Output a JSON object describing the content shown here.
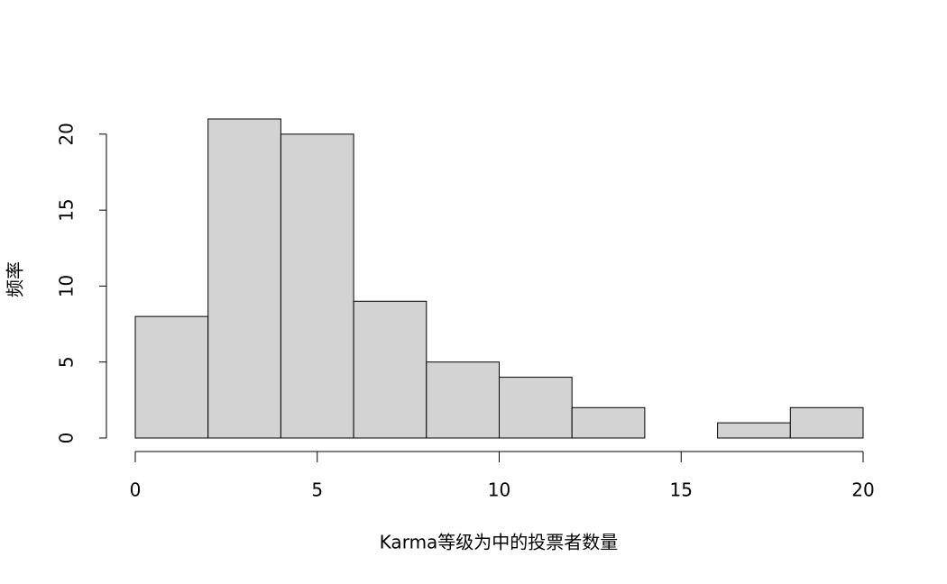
{
  "chart_data": {
    "type": "histogram",
    "xlabel": "Karma等级为中的投票者数量",
    "ylabel": "频率",
    "bins": [
      0,
      2,
      4,
      6,
      8,
      10,
      12,
      14,
      16,
      18,
      20
    ],
    "values": [
      8,
      21,
      20,
      9,
      5,
      4,
      2,
      0,
      1,
      2
    ],
    "color": "#d3d3d3",
    "xlim": [
      0,
      20
    ],
    "xticks": [
      0,
      5,
      10,
      15,
      20
    ],
    "ylim": [
      0,
      21
    ],
    "yticks": [
      0,
      5,
      10,
      15,
      20
    ]
  }
}
